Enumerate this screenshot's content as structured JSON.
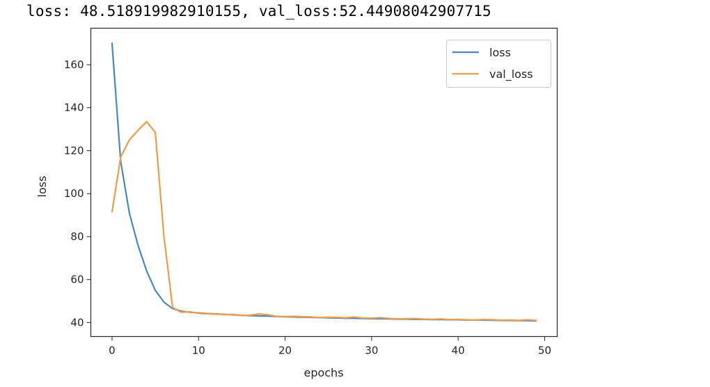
{
  "output": {
    "loss_label": "loss: ",
    "loss_value": "48.518919982910155",
    "separator": ", ",
    "val_loss_label": "val_loss:",
    "val_loss_value": "52.44908042907715"
  },
  "chart_data": {
    "type": "line",
    "xlabel": "epochs",
    "ylabel": "loss",
    "xlim": [
      -2.45,
      51.45
    ],
    "ylim": [
      33.5,
      177
    ],
    "xticks": [
      0,
      10,
      20,
      30,
      40,
      50
    ],
    "yticks": [
      40,
      60,
      80,
      100,
      120,
      140,
      160
    ],
    "legend_position": "upper-right",
    "grid": false,
    "x": [
      0,
      1,
      2,
      3,
      4,
      5,
      6,
      7,
      8,
      9,
      10,
      11,
      12,
      13,
      14,
      15,
      16,
      17,
      18,
      19,
      20,
      21,
      22,
      23,
      24,
      25,
      26,
      27,
      28,
      29,
      30,
      31,
      32,
      33,
      34,
      35,
      36,
      37,
      38,
      39,
      40,
      41,
      42,
      43,
      44,
      45,
      46,
      47,
      48,
      49
    ],
    "series": [
      {
        "name": "loss",
        "color": "#4c86c1",
        "values": [
          170,
          115,
          91,
          76,
          64,
          55,
          49.5,
          46.5,
          45.3,
          44.8,
          44.5,
          44.2,
          44.0,
          43.8,
          43.6,
          43.4,
          43.2,
          43.1,
          43.0,
          42.8,
          42.7,
          42.6,
          42.5,
          42.4,
          42.3,
          42.2,
          42.1,
          42.0,
          42.0,
          41.9,
          41.8,
          41.8,
          41.7,
          41.6,
          41.6,
          41.5,
          41.5,
          41.4,
          41.4,
          41.3,
          41.3,
          41.2,
          41.2,
          41.1,
          41.1,
          41.0,
          41.0,
          40.9,
          40.9,
          40.8
        ]
      },
      {
        "name": "val_loss",
        "color": "#f29b46",
        "values": [
          91.5,
          117,
          125,
          129.5,
          133.5,
          128.5,
          80,
          47,
          44.8,
          45.0,
          44.3,
          44.1,
          43.9,
          43.7,
          43.8,
          43.3,
          43.5,
          44.0,
          43.6,
          42.9,
          42.8,
          42.9,
          42.7,
          42.6,
          42.3,
          42.5,
          42.4,
          42.2,
          42.6,
          42.1,
          42.0,
          42.3,
          41.9,
          41.7,
          41.8,
          41.9,
          41.6,
          41.5,
          41.7,
          41.4,
          41.5,
          41.3,
          41.2,
          41.4,
          41.3,
          41.1,
          41.2,
          41.0,
          41.3,
          41.0
        ]
      }
    ]
  }
}
